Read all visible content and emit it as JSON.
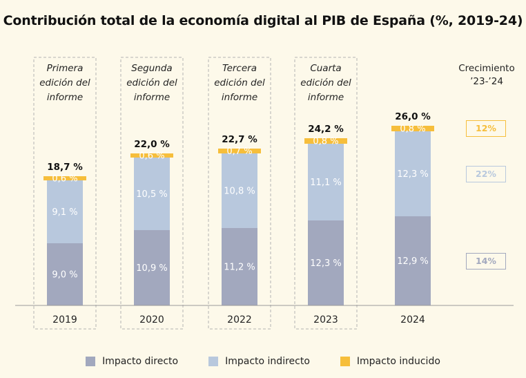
{
  "chart_data": {
    "type": "bar",
    "stacked": true,
    "title": "Contribución total de la economía digital al PIB de España (%, 2019-24)",
    "categories": [
      "2019",
      "2020",
      "2022",
      "2023",
      "2024"
    ],
    "editions": [
      "Primera\nedición del\ninforme",
      "Segunda\nedición del\ninforme",
      "Tercera\nedición del\ninforme",
      "Cuarta\nedición del\ninforme",
      ""
    ],
    "totals": [
      18.7,
      22.0,
      22.7,
      24.2,
      26.0
    ],
    "totals_labels": [
      "18,7 %",
      "22,0 %",
      "22,7 %",
      "24,2 %",
      "26,0 %"
    ],
    "series": [
      {
        "name": "Impacto directo",
        "color": "#a2a8be",
        "values": [
          9.0,
          10.9,
          11.2,
          12.3,
          12.9
        ],
        "labels": [
          "9,0 %",
          "10,9 %",
          "11,2 %",
          "12,3 %",
          "12,9 %"
        ]
      },
      {
        "name": "Impacto indirecto",
        "color": "#b8c8dd",
        "values": [
          9.1,
          10.5,
          10.8,
          11.1,
          12.3
        ],
        "labels": [
          "9,1 %",
          "10,5 %",
          "10,8 %",
          "11,1 %",
          "12,3 %"
        ]
      },
      {
        "name": "Impacto inducido",
        "color": "#f6be3b",
        "values": [
          0.6,
          0.6,
          0.7,
          0.8,
          0.8
        ],
        "labels": [
          "0,6 %",
          "0,6 %",
          "0,7 %",
          "0,8 %",
          "0,8 %"
        ]
      }
    ],
    "growth": {
      "header": "Crecimiento\n’23-’24",
      "items": [
        {
          "series": "Impacto inducido",
          "label": "12%",
          "color": "#f6be3b"
        },
        {
          "series": "Impacto indirecto",
          "label": "22%",
          "color": "#b8c8dd"
        },
        {
          "series": "Impacto directo",
          "label": "14%",
          "color": "#a2a8be"
        }
      ]
    },
    "ylim": [
      0,
      30
    ],
    "grid": false,
    "legend_position": "bottom"
  }
}
